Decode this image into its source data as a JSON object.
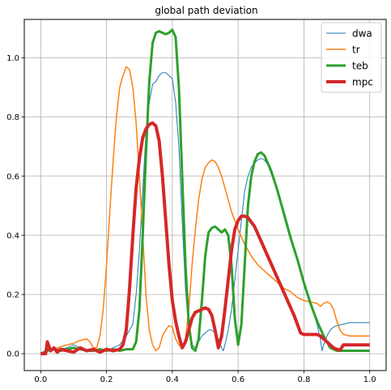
{
  "chart_data": {
    "type": "line",
    "title": "global path deviation",
    "xlabel": "",
    "ylabel": "",
    "xlim": [
      -0.05,
      1.05
    ],
    "ylim": [
      -0.057,
      1.13
    ],
    "xticks": [
      0.0,
      0.2,
      0.4,
      0.6,
      0.8,
      1.0
    ],
    "xtick_labels": [
      "0.0",
      "0.2",
      "0.4",
      "0.6",
      "0.8",
      "1.0"
    ],
    "yticks": [
      0.0,
      0.2,
      0.4,
      0.6,
      0.8,
      1.0
    ],
    "ytick_labels": [
      "0.0",
      "0.2",
      "0.4",
      "0.6",
      "0.8",
      "1.0"
    ],
    "grid": true,
    "legend_position": "top-right",
    "series": [
      {
        "name": "dwa",
        "color": "#1f77b4",
        "line_width": 1,
        "points": [
          [
            0.0,
            0.0
          ],
          [
            0.02,
            0.01
          ],
          [
            0.05,
            0.015
          ],
          [
            0.08,
            0.02
          ],
          [
            0.1,
            0.03
          ],
          [
            0.12,
            0.02
          ],
          [
            0.15,
            0.01
          ],
          [
            0.18,
            0.015
          ],
          [
            0.2,
            0.01
          ],
          [
            0.22,
            0.02
          ],
          [
            0.24,
            0.03
          ],
          [
            0.26,
            0.06
          ],
          [
            0.28,
            0.1
          ],
          [
            0.29,
            0.2
          ],
          [
            0.3,
            0.35
          ],
          [
            0.31,
            0.55
          ],
          [
            0.32,
            0.75
          ],
          [
            0.33,
            0.85
          ],
          [
            0.34,
            0.91
          ],
          [
            0.35,
            0.92
          ],
          [
            0.36,
            0.94
          ],
          [
            0.37,
            0.95
          ],
          [
            0.38,
            0.95
          ],
          [
            0.39,
            0.94
          ],
          [
            0.4,
            0.93
          ],
          [
            0.41,
            0.85
          ],
          [
            0.42,
            0.7
          ],
          [
            0.43,
            0.45
          ],
          [
            0.44,
            0.22
          ],
          [
            0.45,
            0.08
          ],
          [
            0.46,
            0.03
          ],
          [
            0.47,
            0.02
          ],
          [
            0.48,
            0.04
          ],
          [
            0.49,
            0.06
          ],
          [
            0.5,
            0.07
          ],
          [
            0.51,
            0.08
          ],
          [
            0.52,
            0.08
          ],
          [
            0.53,
            0.07
          ],
          [
            0.54,
            0.05
          ],
          [
            0.55,
            0.02
          ],
          [
            0.555,
            0.01
          ],
          [
            0.56,
            0.03
          ],
          [
            0.57,
            0.08
          ],
          [
            0.58,
            0.15
          ],
          [
            0.59,
            0.25
          ],
          [
            0.6,
            0.35
          ],
          [
            0.61,
            0.45
          ],
          [
            0.62,
            0.55
          ],
          [
            0.63,
            0.6
          ],
          [
            0.64,
            0.63
          ],
          [
            0.65,
            0.645
          ],
          [
            0.66,
            0.655
          ],
          [
            0.67,
            0.66
          ],
          [
            0.68,
            0.655
          ],
          [
            0.69,
            0.64
          ],
          [
            0.7,
            0.61
          ],
          [
            0.72,
            0.55
          ],
          [
            0.74,
            0.48
          ],
          [
            0.76,
            0.4
          ],
          [
            0.78,
            0.32
          ],
          [
            0.8,
            0.24
          ],
          [
            0.82,
            0.17
          ],
          [
            0.84,
            0.1
          ],
          [
            0.85,
            0.05
          ],
          [
            0.855,
            0.01
          ],
          [
            0.86,
            0.03
          ],
          [
            0.87,
            0.06
          ],
          [
            0.88,
            0.08
          ],
          [
            0.89,
            0.09
          ],
          [
            0.9,
            0.095
          ],
          [
            0.92,
            0.1
          ],
          [
            0.94,
            0.105
          ],
          [
            0.96,
            0.105
          ],
          [
            0.98,
            0.105
          ],
          [
            1.0,
            0.105
          ]
        ]
      },
      {
        "name": "tr",
        "color": "#ff7f0e",
        "line_width": 1.5,
        "points": [
          [
            0.0,
            0.0
          ],
          [
            0.02,
            0.01
          ],
          [
            0.05,
            0.02
          ],
          [
            0.08,
            0.03
          ],
          [
            0.1,
            0.035
          ],
          [
            0.12,
            0.045
          ],
          [
            0.14,
            0.05
          ],
          [
            0.15,
            0.04
          ],
          [
            0.16,
            0.02
          ],
          [
            0.17,
            0.02
          ],
          [
            0.18,
            0.06
          ],
          [
            0.19,
            0.15
          ],
          [
            0.2,
            0.3
          ],
          [
            0.21,
            0.48
          ],
          [
            0.22,
            0.65
          ],
          [
            0.23,
            0.8
          ],
          [
            0.24,
            0.9
          ],
          [
            0.25,
            0.94
          ],
          [
            0.26,
            0.97
          ],
          [
            0.27,
            0.96
          ],
          [
            0.28,
            0.9
          ],
          [
            0.29,
            0.78
          ],
          [
            0.3,
            0.6
          ],
          [
            0.31,
            0.4
          ],
          [
            0.32,
            0.2
          ],
          [
            0.33,
            0.08
          ],
          [
            0.34,
            0.03
          ],
          [
            0.35,
            0.01
          ],
          [
            0.36,
            0.02
          ],
          [
            0.37,
            0.06
          ],
          [
            0.38,
            0.08
          ],
          [
            0.39,
            0.095
          ],
          [
            0.4,
            0.09
          ],
          [
            0.41,
            0.05
          ],
          [
            0.42,
            0.03
          ],
          [
            0.43,
            0.02
          ],
          [
            0.44,
            0.05
          ],
          [
            0.45,
            0.15
          ],
          [
            0.46,
            0.3
          ],
          [
            0.47,
            0.42
          ],
          [
            0.48,
            0.52
          ],
          [
            0.49,
            0.59
          ],
          [
            0.5,
            0.63
          ],
          [
            0.51,
            0.645
          ],
          [
            0.52,
            0.655
          ],
          [
            0.53,
            0.65
          ],
          [
            0.54,
            0.63
          ],
          [
            0.55,
            0.6
          ],
          [
            0.56,
            0.56
          ],
          [
            0.57,
            0.52
          ],
          [
            0.58,
            0.48
          ],
          [
            0.6,
            0.42
          ],
          [
            0.62,
            0.37
          ],
          [
            0.64,
            0.33
          ],
          [
            0.66,
            0.3
          ],
          [
            0.68,
            0.28
          ],
          [
            0.7,
            0.26
          ],
          [
            0.72,
            0.24
          ],
          [
            0.74,
            0.22
          ],
          [
            0.76,
            0.21
          ],
          [
            0.78,
            0.19
          ],
          [
            0.8,
            0.18
          ],
          [
            0.82,
            0.175
          ],
          [
            0.84,
            0.17
          ],
          [
            0.85,
            0.16
          ],
          [
            0.86,
            0.17
          ],
          [
            0.87,
            0.175
          ],
          [
            0.88,
            0.17
          ],
          [
            0.89,
            0.15
          ],
          [
            0.9,
            0.11
          ],
          [
            0.91,
            0.08
          ],
          [
            0.92,
            0.065
          ],
          [
            0.94,
            0.06
          ],
          [
            0.96,
            0.06
          ],
          [
            0.98,
            0.06
          ],
          [
            1.0,
            0.06
          ]
        ]
      },
      {
        "name": "teb",
        "color": "#2ca02c",
        "line_width": 3,
        "points": [
          [
            0.0,
            0.0
          ],
          [
            0.02,
            0.01
          ],
          [
            0.04,
            0.015
          ],
          [
            0.06,
            0.01
          ],
          [
            0.08,
            0.015
          ],
          [
            0.1,
            0.02
          ],
          [
            0.12,
            0.015
          ],
          [
            0.14,
            0.01
          ],
          [
            0.16,
            0.01
          ],
          [
            0.18,
            0.015
          ],
          [
            0.2,
            0.01
          ],
          [
            0.22,
            0.015
          ],
          [
            0.24,
            0.01
          ],
          [
            0.26,
            0.015
          ],
          [
            0.28,
            0.015
          ],
          [
            0.29,
            0.04
          ],
          [
            0.3,
            0.15
          ],
          [
            0.31,
            0.4
          ],
          [
            0.32,
            0.68
          ],
          [
            0.33,
            0.92
          ],
          [
            0.34,
            1.05
          ],
          [
            0.35,
            1.085
          ],
          [
            0.36,
            1.09
          ],
          [
            0.37,
            1.085
          ],
          [
            0.38,
            1.08
          ],
          [
            0.39,
            1.085
          ],
          [
            0.4,
            1.095
          ],
          [
            0.41,
            1.07
          ],
          [
            0.42,
            0.9
          ],
          [
            0.43,
            0.6
          ],
          [
            0.44,
            0.3
          ],
          [
            0.45,
            0.1
          ],
          [
            0.46,
            0.02
          ],
          [
            0.47,
            0.01
          ],
          [
            0.48,
            0.05
          ],
          [
            0.49,
            0.18
          ],
          [
            0.5,
            0.33
          ],
          [
            0.51,
            0.41
          ],
          [
            0.52,
            0.425
          ],
          [
            0.53,
            0.43
          ],
          [
            0.54,
            0.42
          ],
          [
            0.55,
            0.41
          ],
          [
            0.56,
            0.42
          ],
          [
            0.57,
            0.4
          ],
          [
            0.58,
            0.3
          ],
          [
            0.59,
            0.12
          ],
          [
            0.6,
            0.03
          ],
          [
            0.61,
            0.1
          ],
          [
            0.62,
            0.3
          ],
          [
            0.63,
            0.5
          ],
          [
            0.64,
            0.6
          ],
          [
            0.65,
            0.65
          ],
          [
            0.66,
            0.675
          ],
          [
            0.67,
            0.68
          ],
          [
            0.68,
            0.67
          ],
          [
            0.7,
            0.62
          ],
          [
            0.72,
            0.55
          ],
          [
            0.74,
            0.47
          ],
          [
            0.76,
            0.39
          ],
          [
            0.78,
            0.32
          ],
          [
            0.8,
            0.24
          ],
          [
            0.82,
            0.17
          ],
          [
            0.84,
            0.11
          ],
          [
            0.86,
            0.06
          ],
          [
            0.88,
            0.02
          ],
          [
            0.9,
            0.01
          ],
          [
            0.92,
            0.01
          ],
          [
            0.94,
            0.01
          ],
          [
            0.96,
            0.01
          ],
          [
            0.98,
            0.01
          ],
          [
            1.0,
            0.01
          ]
        ]
      },
      {
        "name": "mpc",
        "color": "#d62728",
        "line_width": 4,
        "points": [
          [
            0.0,
            0.0
          ],
          [
            0.015,
            0.0
          ],
          [
            0.02,
            0.04
          ],
          [
            0.03,
            0.01
          ],
          [
            0.04,
            0.02
          ],
          [
            0.05,
            0.005
          ],
          [
            0.06,
            0.015
          ],
          [
            0.08,
            0.01
          ],
          [
            0.1,
            0.005
          ],
          [
            0.12,
            0.02
          ],
          [
            0.14,
            0.01
          ],
          [
            0.16,
            0.015
          ],
          [
            0.18,
            0.005
          ],
          [
            0.2,
            0.015
          ],
          [
            0.22,
            0.01
          ],
          [
            0.24,
            0.015
          ],
          [
            0.25,
            0.03
          ],
          [
            0.26,
            0.08
          ],
          [
            0.27,
            0.22
          ],
          [
            0.28,
            0.4
          ],
          [
            0.29,
            0.56
          ],
          [
            0.3,
            0.66
          ],
          [
            0.31,
            0.73
          ],
          [
            0.32,
            0.76
          ],
          [
            0.33,
            0.775
          ],
          [
            0.34,
            0.78
          ],
          [
            0.35,
            0.77
          ],
          [
            0.36,
            0.72
          ],
          [
            0.37,
            0.6
          ],
          [
            0.38,
            0.45
          ],
          [
            0.39,
            0.3
          ],
          [
            0.4,
            0.18
          ],
          [
            0.41,
            0.11
          ],
          [
            0.42,
            0.06
          ],
          [
            0.43,
            0.02
          ],
          [
            0.44,
            0.04
          ],
          [
            0.45,
            0.08
          ],
          [
            0.46,
            0.12
          ],
          [
            0.47,
            0.14
          ],
          [
            0.48,
            0.145
          ],
          [
            0.49,
            0.15
          ],
          [
            0.5,
            0.155
          ],
          [
            0.51,
            0.15
          ],
          [
            0.52,
            0.13
          ],
          [
            0.53,
            0.08
          ],
          [
            0.54,
            0.02
          ],
          [
            0.55,
            0.06
          ],
          [
            0.56,
            0.15
          ],
          [
            0.57,
            0.25
          ],
          [
            0.58,
            0.35
          ],
          [
            0.59,
            0.42
          ],
          [
            0.6,
            0.45
          ],
          [
            0.61,
            0.465
          ],
          [
            0.62,
            0.465
          ],
          [
            0.63,
            0.46
          ],
          [
            0.65,
            0.43
          ],
          [
            0.67,
            0.38
          ],
          [
            0.69,
            0.33
          ],
          [
            0.71,
            0.28
          ],
          [
            0.73,
            0.23
          ],
          [
            0.75,
            0.18
          ],
          [
            0.77,
            0.13
          ],
          [
            0.78,
            0.1
          ],
          [
            0.79,
            0.07
          ],
          [
            0.8,
            0.065
          ],
          [
            0.81,
            0.065
          ],
          [
            0.82,
            0.065
          ],
          [
            0.83,
            0.065
          ],
          [
            0.84,
            0.065
          ],
          [
            0.85,
            0.06
          ],
          [
            0.86,
            0.05
          ],
          [
            0.87,
            0.04
          ],
          [
            0.88,
            0.03
          ],
          [
            0.89,
            0.02
          ],
          [
            0.9,
            0.015
          ],
          [
            0.91,
            0.012
          ],
          [
            0.92,
            0.03
          ],
          [
            0.94,
            0.03
          ],
          [
            0.96,
            0.03
          ],
          [
            0.98,
            0.03
          ],
          [
            1.0,
            0.03
          ]
        ]
      }
    ]
  }
}
